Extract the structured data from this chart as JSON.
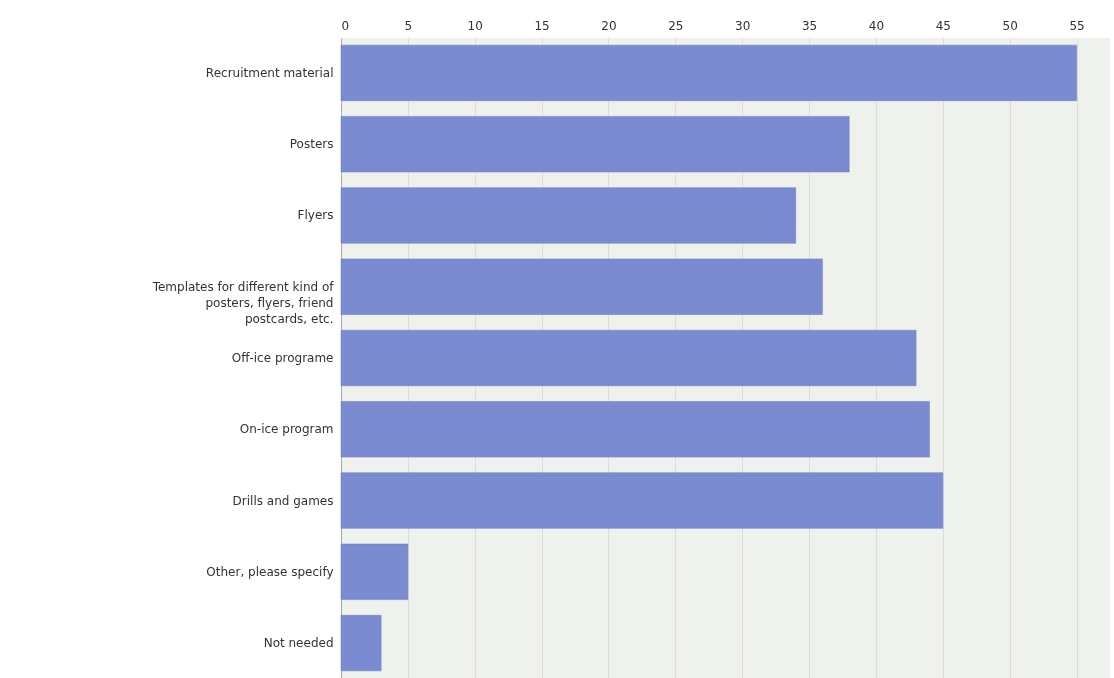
{
  "chart_data": {
    "type": "bar",
    "orientation": "horizontal",
    "categories": [
      "Recruitment material",
      "Posters",
      "Flyers",
      "Templates for different kind of posters, flyers, friend postcards, etc.",
      "Off-ice programe",
      "On-ice program",
      "Drills and games",
      "Other, please specify",
      "Not needed"
    ],
    "values": [
      55,
      38,
      34,
      36,
      43,
      44,
      45,
      5,
      3
    ],
    "color": "#7b8bd2",
    "xlim": [
      0,
      57.5
    ],
    "xticks": [
      0,
      5,
      10,
      15,
      20,
      25,
      30,
      35,
      40,
      45,
      50,
      55
    ],
    "grid": "x"
  }
}
